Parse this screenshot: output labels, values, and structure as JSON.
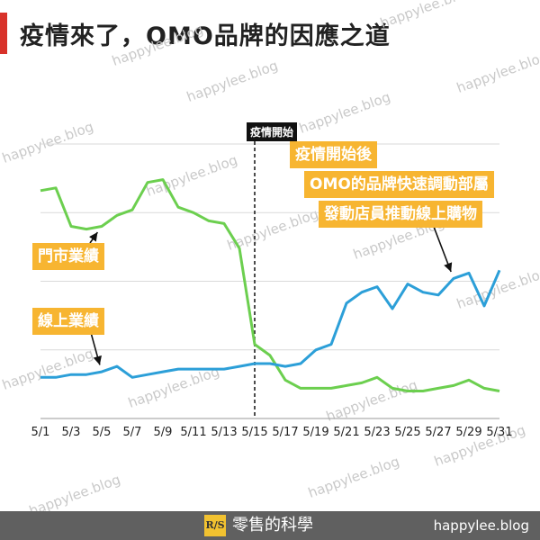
{
  "header": {
    "title": "疫情來了，OMO品牌的因應之道"
  },
  "watermark": {
    "text": "happylee.blog"
  },
  "chart_data": {
    "type": "line",
    "title": "疫情來了，OMO品牌的因應之道",
    "xlabel": "",
    "ylabel": "",
    "categories": [
      "5/1",
      "5/2",
      "5/3",
      "5/4",
      "5/5",
      "5/6",
      "5/7",
      "5/8",
      "5/9",
      "5/10",
      "5/11",
      "5/12",
      "5/13",
      "5/14",
      "5/15",
      "5/16",
      "5/17",
      "5/18",
      "5/19",
      "5/20",
      "5/21",
      "5/22",
      "5/23",
      "5/24",
      "5/25",
      "5/26",
      "5/27",
      "5/28",
      "5/29",
      "5/30",
      "5/31"
    ],
    "tick_labels": [
      "5/1",
      "5/3",
      "5/5",
      "5/7",
      "5/9",
      "5/11",
      "5/13",
      "5/15",
      "5/17",
      "5/19",
      "5/21",
      "5/23",
      "5/25",
      "5/27",
      "5/29",
      "5/31"
    ],
    "ylim": [
      0,
      100
    ],
    "grid": true,
    "series": [
      {
        "name": "門市業績",
        "color": "#6ccf4f",
        "values": [
          83,
          84,
          70,
          69,
          70,
          74,
          76,
          86,
          87,
          77,
          75,
          72,
          71,
          62,
          27,
          23,
          14,
          11,
          11,
          11,
          12,
          13,
          15,
          11,
          10,
          10,
          11,
          12,
          14,
          11,
          10
        ]
      },
      {
        "name": "線上業績",
        "color": "#2c9fd8",
        "values": [
          15,
          15,
          16,
          16,
          17,
          19,
          15,
          16,
          17,
          18,
          18,
          18,
          18,
          19,
          20,
          20,
          19,
          20,
          25,
          27,
          42,
          46,
          48,
          40,
          49,
          46,
          45,
          51,
          53,
          41,
          54
        ]
      }
    ],
    "event_marker": {
      "x": "5/15",
      "label": "疫情開始",
      "style": "dashed"
    },
    "annotations": [
      {
        "lines": [
          "疫情開始後",
          "OMO的品牌快速調動部屬",
          "發動店員推動線上購物"
        ],
        "points_to": {
          "series": "線上業績",
          "x": "5/28"
        }
      },
      {
        "text": "門市業績",
        "points_to": {
          "series": "門市業績",
          "x": "5/5"
        }
      },
      {
        "text": "線上業績",
        "points_to": {
          "series": "線上業績",
          "x": "5/5"
        }
      }
    ]
  },
  "footer": {
    "logo": "R/S",
    "brand": "零售的科學",
    "site": "happylee.blog"
  },
  "colors": {
    "accent": "#d8322a",
    "callout": "#f7b531",
    "footer_bg": "#606060",
    "logo_bg": "#f2c230"
  }
}
